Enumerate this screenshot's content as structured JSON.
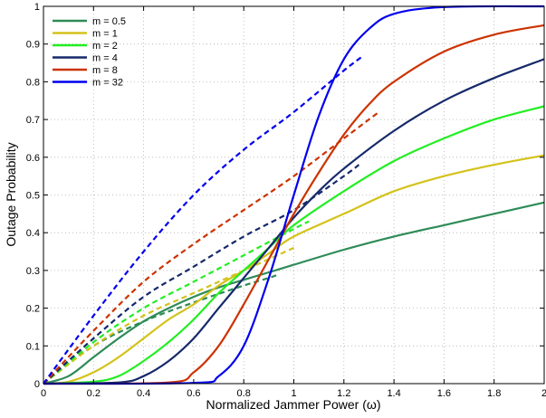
{
  "chart_data": {
    "type": "line",
    "xlabel": "Normalized Jammer Power (ω)",
    "ylabel": "Outage Probability",
    "xlim": [
      0,
      2
    ],
    "ylim": [
      0,
      1
    ],
    "grid": true,
    "legend_position": "top-left",
    "x_ticks": [
      "0",
      "0.2",
      "0.4",
      "0.6",
      "0.8",
      "1",
      "1.2",
      "1.4",
      "1.6",
      "1.8",
      "2"
    ],
    "y_ticks": [
      "0",
      "0.1",
      "0.2",
      "0.3",
      "0.4",
      "0.5",
      "0.6",
      "0.7",
      "0.8",
      "0.9",
      "1"
    ],
    "series": [
      {
        "name": "m = 0.5",
        "color": "#2e8b57",
        "solid": [
          [
            0,
            0
          ],
          [
            0.1,
            0.02
          ],
          [
            0.2,
            0.07
          ],
          [
            0.3,
            0.12
          ],
          [
            0.4,
            0.165
          ],
          [
            0.5,
            0.2
          ],
          [
            0.6,
            0.23
          ],
          [
            0.7,
            0.255
          ],
          [
            0.8,
            0.275
          ],
          [
            0.9,
            0.295
          ],
          [
            1.0,
            0.315
          ],
          [
            1.2,
            0.355
          ],
          [
            1.4,
            0.39
          ],
          [
            1.6,
            0.42
          ],
          [
            1.8,
            0.45
          ],
          [
            2.0,
            0.48
          ]
        ],
        "dashed": [
          [
            0,
            0
          ],
          [
            0.2,
            0.1
          ],
          [
            0.4,
            0.165
          ],
          [
            0.6,
            0.215
          ],
          [
            0.8,
            0.26
          ],
          [
            0.9,
            0.28
          ],
          [
            0.94,
            0.29
          ]
        ]
      },
      {
        "name": "m = 1",
        "color": "#d4c21a",
        "solid": [
          [
            0,
            0
          ],
          [
            0.1,
            0.005
          ],
          [
            0.2,
            0.03
          ],
          [
            0.3,
            0.07
          ],
          [
            0.4,
            0.12
          ],
          [
            0.5,
            0.17
          ],
          [
            0.6,
            0.21
          ],
          [
            0.7,
            0.26
          ],
          [
            0.8,
            0.3
          ],
          [
            0.9,
            0.345
          ],
          [
            1.0,
            0.39
          ],
          [
            1.2,
            0.45
          ],
          [
            1.4,
            0.51
          ],
          [
            1.6,
            0.55
          ],
          [
            1.8,
            0.58
          ],
          [
            2.0,
            0.605
          ]
        ],
        "dashed": [
          [
            0,
            0
          ],
          [
            0.2,
            0.1
          ],
          [
            0.4,
            0.18
          ],
          [
            0.6,
            0.24
          ],
          [
            0.8,
            0.3
          ],
          [
            0.9,
            0.33
          ],
          [
            1.0,
            0.36
          ]
        ]
      },
      {
        "name": "m = 2",
        "color": "#22ee22",
        "solid": [
          [
            0,
            0
          ],
          [
            0.2,
            0.005
          ],
          [
            0.3,
            0.02
          ],
          [
            0.4,
            0.06
          ],
          [
            0.5,
            0.11
          ],
          [
            0.6,
            0.17
          ],
          [
            0.7,
            0.24
          ],
          [
            0.8,
            0.3
          ],
          [
            0.9,
            0.36
          ],
          [
            1.0,
            0.42
          ],
          [
            1.2,
            0.51
          ],
          [
            1.4,
            0.59
          ],
          [
            1.6,
            0.65
          ],
          [
            1.8,
            0.7
          ],
          [
            2.0,
            0.735
          ]
        ],
        "dashed": [
          [
            0,
            0
          ],
          [
            0.2,
            0.11
          ],
          [
            0.4,
            0.2
          ],
          [
            0.6,
            0.27
          ],
          [
            0.8,
            0.34
          ],
          [
            1.0,
            0.41
          ],
          [
            1.06,
            0.43
          ]
        ]
      },
      {
        "name": "m = 4",
        "color": "#16296b",
        "solid": [
          [
            0,
            0
          ],
          [
            0.3,
            0.003
          ],
          [
            0.4,
            0.02
          ],
          [
            0.5,
            0.06
          ],
          [
            0.6,
            0.12
          ],
          [
            0.7,
            0.2
          ],
          [
            0.8,
            0.28
          ],
          [
            0.9,
            0.36
          ],
          [
            1.0,
            0.44
          ],
          [
            1.1,
            0.51
          ],
          [
            1.2,
            0.57
          ],
          [
            1.4,
            0.67
          ],
          [
            1.6,
            0.75
          ],
          [
            1.8,
            0.81
          ],
          [
            2.0,
            0.86
          ]
        ],
        "dashed": [
          [
            0,
            0
          ],
          [
            0.2,
            0.12
          ],
          [
            0.4,
            0.23
          ],
          [
            0.6,
            0.31
          ],
          [
            0.8,
            0.39
          ],
          [
            1.0,
            0.46
          ],
          [
            1.2,
            0.55
          ],
          [
            1.26,
            0.58
          ]
        ]
      },
      {
        "name": "m = 8",
        "color": "#cc3300",
        "solid": [
          [
            0,
            0
          ],
          [
            0.5,
            0.003
          ],
          [
            0.6,
            0.03
          ],
          [
            0.7,
            0.1
          ],
          [
            0.8,
            0.21
          ],
          [
            0.9,
            0.33
          ],
          [
            1.0,
            0.45
          ],
          [
            1.1,
            0.56
          ],
          [
            1.2,
            0.66
          ],
          [
            1.3,
            0.74
          ],
          [
            1.4,
            0.8
          ],
          [
            1.6,
            0.88
          ],
          [
            1.8,
            0.925
          ],
          [
            2.0,
            0.95
          ]
        ],
        "dashed": [
          [
            0,
            0
          ],
          [
            0.2,
            0.14
          ],
          [
            0.4,
            0.27
          ],
          [
            0.6,
            0.37
          ],
          [
            0.8,
            0.46
          ],
          [
            1.0,
            0.55
          ],
          [
            1.2,
            0.65
          ],
          [
            1.34,
            0.72
          ]
        ]
      },
      {
        "name": "m = 32",
        "color": "#0000ee",
        "solid": [
          [
            0,
            0
          ],
          [
            0.6,
            0.002
          ],
          [
            0.7,
            0.02
          ],
          [
            0.8,
            0.1
          ],
          [
            0.9,
            0.28
          ],
          [
            1.0,
            0.5
          ],
          [
            1.1,
            0.71
          ],
          [
            1.2,
            0.86
          ],
          [
            1.3,
            0.94
          ],
          [
            1.4,
            0.98
          ],
          [
            1.6,
            0.998
          ],
          [
            2.0,
            1.0
          ]
        ],
        "dashed": [
          [
            0,
            0
          ],
          [
            0.2,
            0.18
          ],
          [
            0.4,
            0.35
          ],
          [
            0.6,
            0.5
          ],
          [
            0.8,
            0.62
          ],
          [
            1.0,
            0.72
          ],
          [
            1.2,
            0.83
          ],
          [
            1.28,
            0.87
          ]
        ]
      }
    ]
  }
}
